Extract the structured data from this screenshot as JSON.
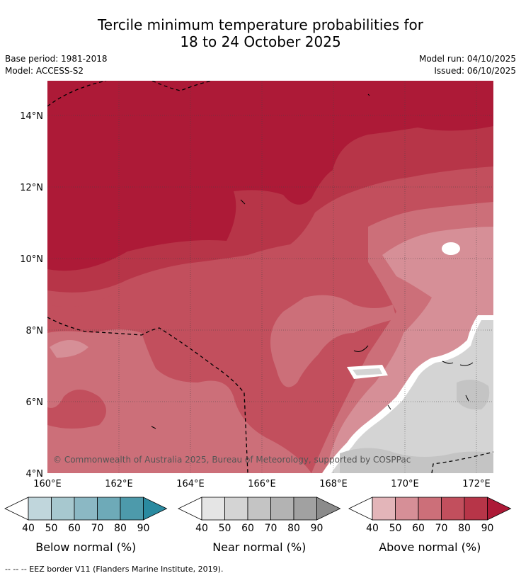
{
  "title_line1": "Tercile minimum temperature probabilities for",
  "title_line2": "18 to 24 October 2025",
  "base_period": "Base period: 1981-2018",
  "model": "Model: ACCESS-S2",
  "model_run": "Model run: 04/10/2025",
  "issued": "Issued: 06/10/2025",
  "y_ticks": [
    "14°N",
    "12°N",
    "10°N",
    "8°N",
    "6°N",
    "4°N"
  ],
  "x_ticks": [
    "160°E",
    "162°E",
    "164°E",
    "166°E",
    "168°E",
    "170°E",
    "172°E"
  ],
  "credit": "© Commonwealth of Australia 2025, Bureau of Meteorology, supported by COSPPac",
  "colorbars": [
    {
      "title": "Below normal (%)",
      "ticks": [
        "40",
        "50",
        "60",
        "70",
        "80",
        "90"
      ],
      "colors": [
        "#c0d6dc",
        "#a7c8cf",
        "#8bb8c4",
        "#6eaab8",
        "#4d9aab",
        "#2a8aa0"
      ]
    },
    {
      "title": "Near normal (%)",
      "ticks": [
        "40",
        "50",
        "60",
        "70",
        "80",
        "90"
      ],
      "colors": [
        "#e5e5e5",
        "#d4d4d4",
        "#c4c4c4",
        "#b3b3b3",
        "#a1a1a1",
        "#8b8b8b"
      ]
    },
    {
      "title": "Above normal (%)",
      "ticks": [
        "40",
        "50",
        "60",
        "70",
        "80",
        "90"
      ],
      "colors": [
        "#e3b5b9",
        "#d68f97",
        "#cc6f79",
        "#c24f5d",
        "#b73548",
        "#ad1a37"
      ]
    }
  ],
  "footer": "--  --  -- EEZ border V11 (Flanders Marine Institute, 2019)."
}
